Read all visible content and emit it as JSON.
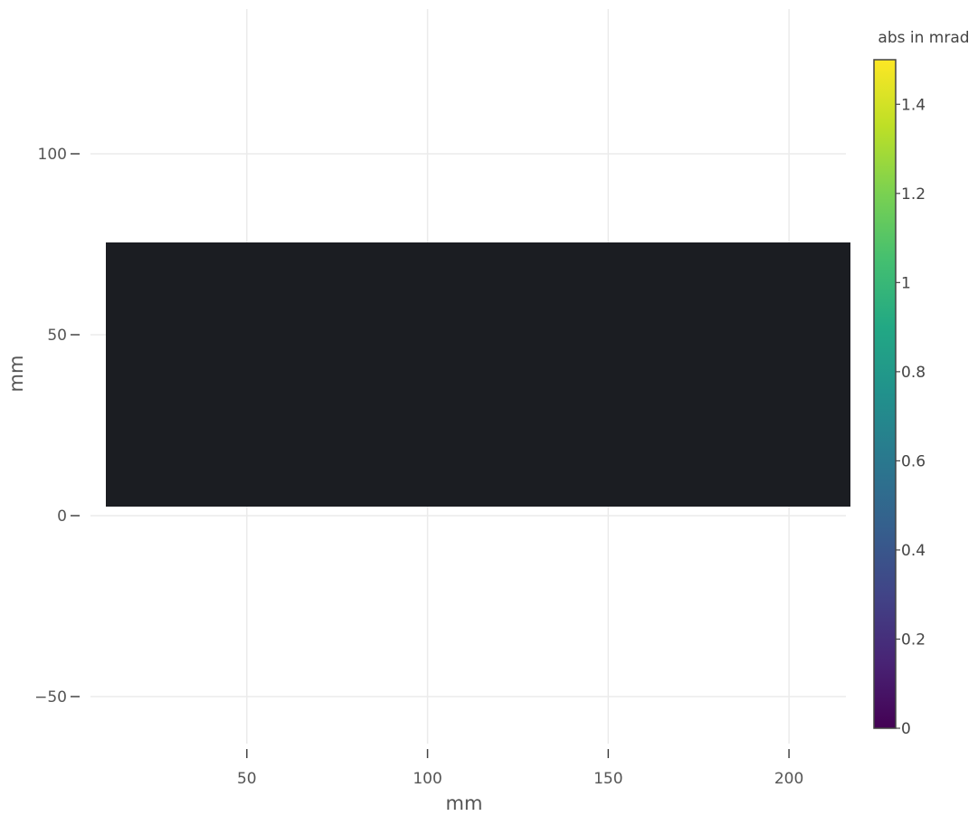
{
  "chart_data": {
    "type": "heatmap",
    "xlabel": "mm",
    "ylabel": "mm",
    "x_ticks": [
      50,
      100,
      150,
      200
    ],
    "y_ticks": [
      100,
      50,
      0,
      -50
    ],
    "y_tick_labels": [
      "100",
      "50",
      "0",
      "−50"
    ],
    "xlim": [
      10.5,
      217
    ],
    "ylim": [
      -63,
      140
    ],
    "grid": true,
    "image_extent": {
      "x": [
        11,
        217
      ],
      "y": [
        2.5,
        75.5
      ]
    },
    "image_value_approx": 0.02,
    "colorbar": {
      "title": "abs in mrad",
      "colorscale": "viridis",
      "range": [
        0,
        1.5
      ],
      "ticks": [
        0,
        0.2,
        0.4,
        0.6,
        0.8,
        1,
        1.2,
        1.4
      ],
      "tick_labels": [
        "0",
        "0.2",
        "0.4",
        "0.6",
        "0.8",
        "1",
        "1.2",
        "1.4"
      ]
    }
  }
}
